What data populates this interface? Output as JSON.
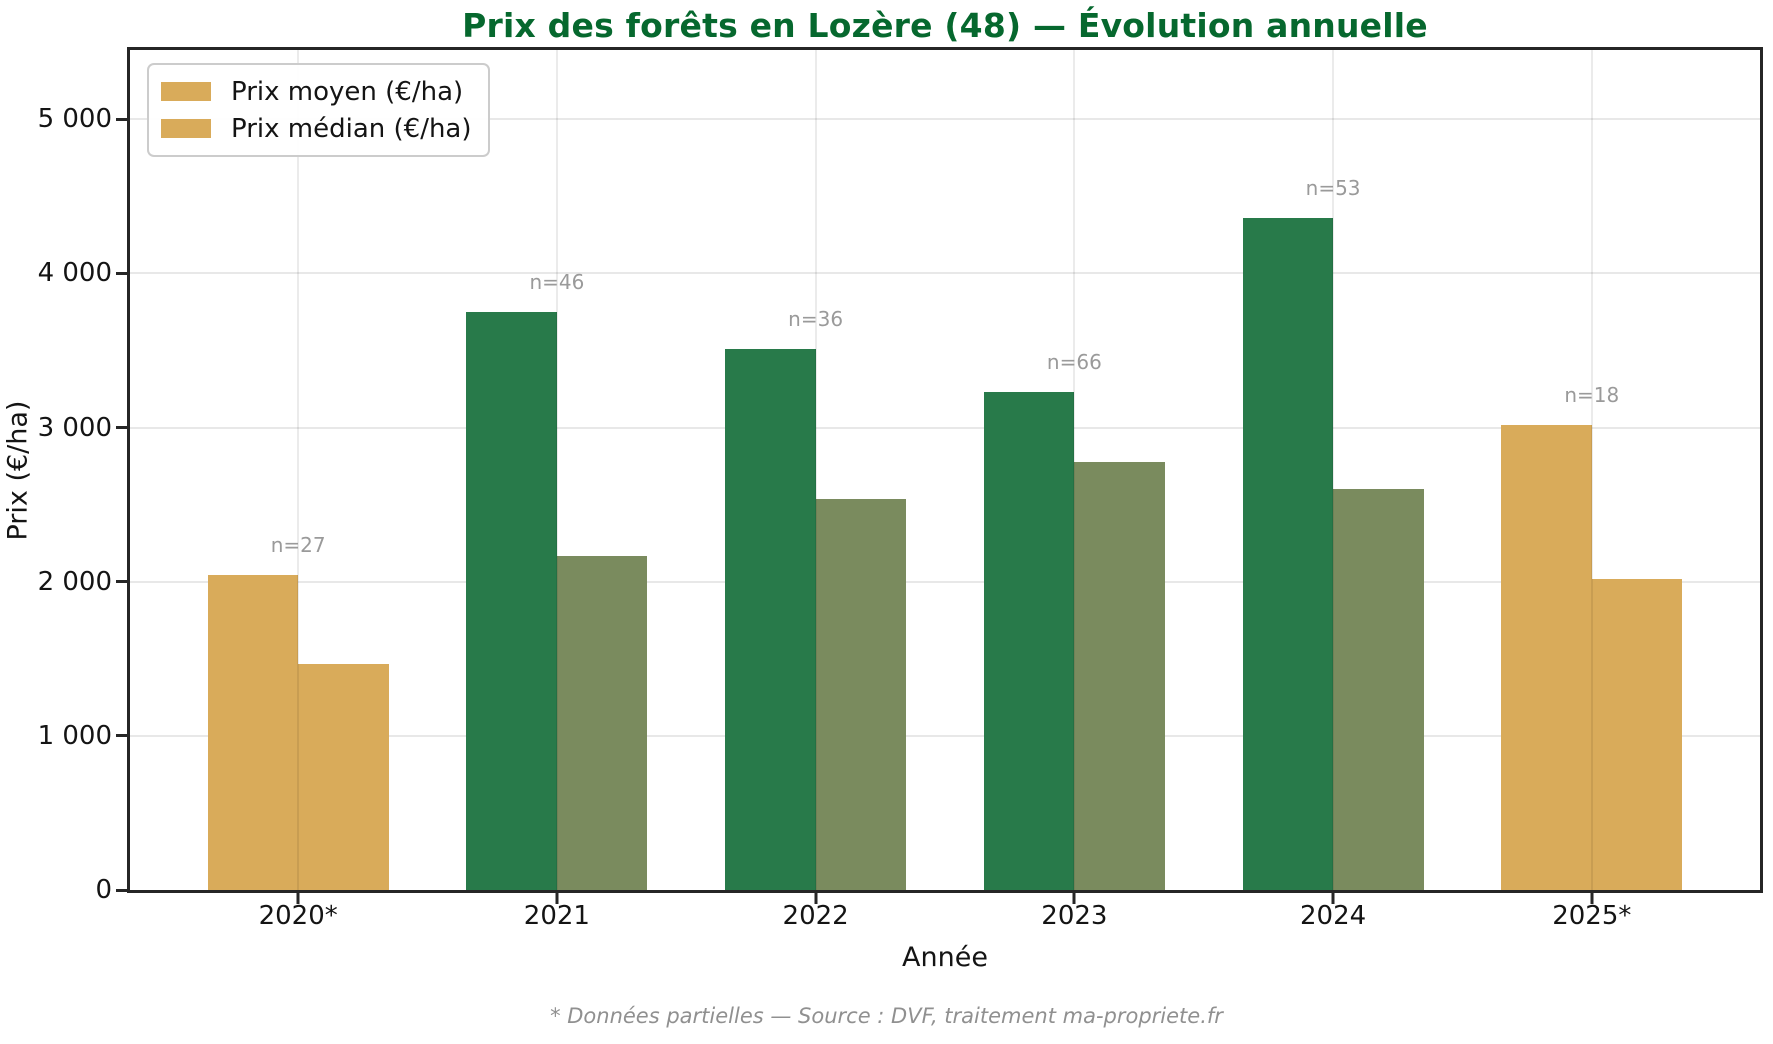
{
  "chart_data": {
    "type": "bar",
    "title": "Prix des forêts en Lozère (48) — Évolution annuelle",
    "xlabel": "Année",
    "ylabel": "Prix (€/ha)",
    "categories": [
      "2020*",
      "2021",
      "2022",
      "2023",
      "2024",
      "2025*"
    ],
    "series": [
      {
        "name": "Prix moyen (€/ha)",
        "values": [
          2045,
          3750,
          3510,
          3230,
          4360,
          3020
        ]
      },
      {
        "name": "Prix médian (€/ha)",
        "values": [
          1465,
          2170,
          2535,
          2780,
          2605,
          2015
        ]
      }
    ],
    "counts": [
      "n=27",
      "n=46",
      "n=36",
      "n=66",
      "n=53",
      "n=18"
    ],
    "partial_year_indices": [
      0,
      5
    ],
    "ylim": [
      0,
      5450
    ],
    "yticks": {
      "values": [
        0,
        1000,
        2000,
        3000,
        4000,
        5000
      ],
      "labels": [
        "0",
        "1 000",
        "2 000",
        "3 000",
        "4 000",
        "5 000"
      ]
    },
    "grid": "both",
    "legend_position": "upper left",
    "footnote": "* Données partielles — Source : DVF, traitement ma-propriete.fr",
    "colors": {
      "mean_bar": "#287a4a",
      "median_bar": "#7a8b5e",
      "partial_bar": "#d9ab5a",
      "title_text": "#06682e",
      "count_text": "#9a9a9a",
      "footnote_text": "#909090",
      "grid_line": "#e8e8e8",
      "spine": "#262626"
    }
  },
  "legend": {
    "items": [
      {
        "label": "Prix moyen (€/ha)",
        "color": "#d9ab5a"
      },
      {
        "label": "Prix médian (€/ha)",
        "color": "#d9ab5a"
      }
    ]
  }
}
